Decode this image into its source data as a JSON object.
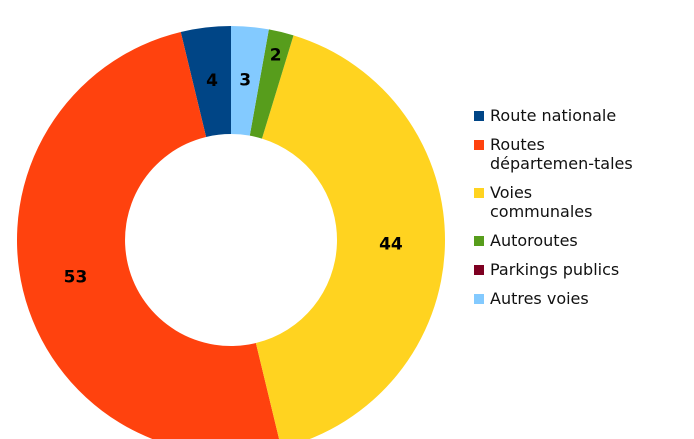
{
  "chart_data": {
    "type": "donut",
    "categories": [
      "Route nationale",
      "Routes départemen-tales",
      "Voies communales",
      "Autoroutes",
      "Parkings publics",
      "Autres voies"
    ],
    "values": [
      4,
      53,
      44,
      2,
      0,
      3
    ],
    "colors": [
      "#004586",
      "#ff420e",
      "#ffd320",
      "#579d1c",
      "#7e0021",
      "#83caff"
    ],
    "legend": "right"
  }
}
